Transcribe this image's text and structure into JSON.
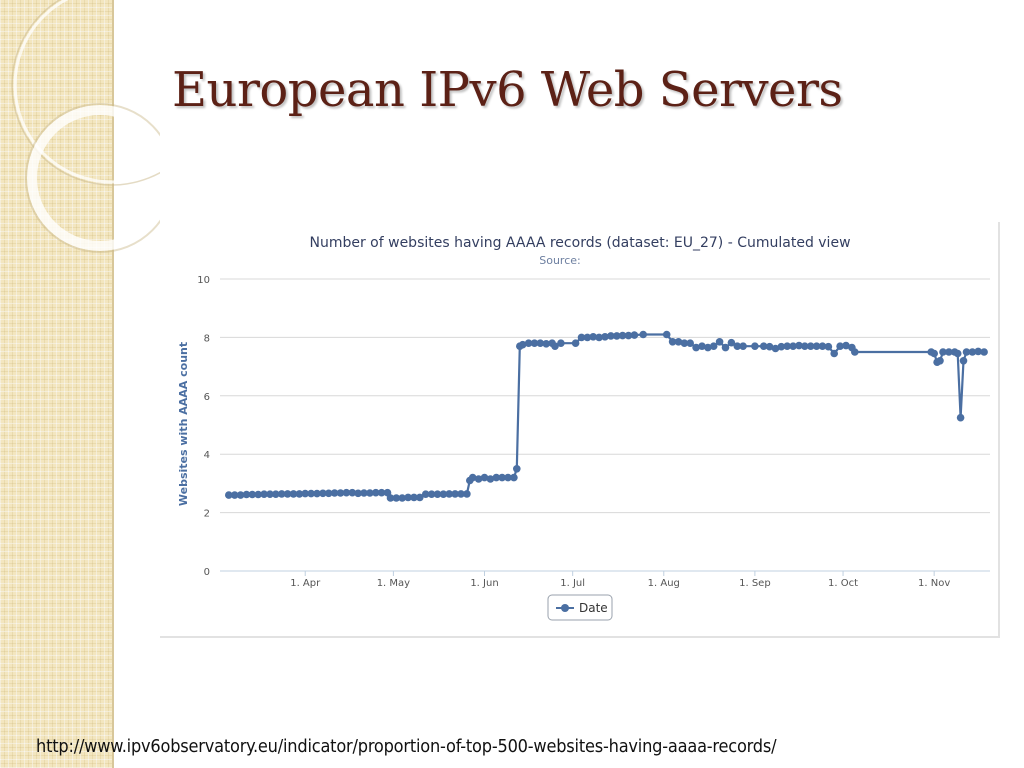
{
  "slide": {
    "title": "European IPv6 Web Servers",
    "source_url": "http://www.ipv6observatory.eu/indicator/proportion-of-top-500-websites-having-aaaa-records/"
  },
  "colors": {
    "title": "#5c2116",
    "series": "#4b6fa2",
    "sidebar": "#f3e6bf"
  },
  "chart_data": {
    "type": "line",
    "title": "Number of websites having AAAA records (dataset: EU_27) - Cumulated view",
    "subtitle": "Source:",
    "xlabel": "",
    "ylabel": "Websites with AAAA count",
    "ylim": [
      0,
      10
    ],
    "yticks": [
      "0",
      "2",
      "4",
      "6",
      "8",
      "10"
    ],
    "xlim": [
      "2011-03-03",
      "2011-11-20"
    ],
    "xticks": [
      {
        "date": "2011-04-01",
        "label": "1. Apr"
      },
      {
        "date": "2011-05-01",
        "label": "1. May"
      },
      {
        "date": "2011-06-01",
        "label": "1. Jun"
      },
      {
        "date": "2011-07-01",
        "label": "1. Jul"
      },
      {
        "date": "2011-08-01",
        "label": "1. Aug"
      },
      {
        "date": "2011-09-01",
        "label": "1. Sep"
      },
      {
        "date": "2011-10-01",
        "label": "1. Oct"
      },
      {
        "date": "2011-11-01",
        "label": "1. Nov"
      }
    ],
    "grid": true,
    "legend": "bottom-center",
    "series": [
      {
        "name": "Date",
        "color": "#4b6fa2",
        "points": [
          [
            "2011-03-06",
            2.6
          ],
          [
            "2011-03-08",
            2.6
          ],
          [
            "2011-03-10",
            2.6
          ],
          [
            "2011-03-12",
            2.62
          ],
          [
            "2011-03-14",
            2.62
          ],
          [
            "2011-03-16",
            2.62
          ],
          [
            "2011-03-18",
            2.63
          ],
          [
            "2011-03-20",
            2.63
          ],
          [
            "2011-03-22",
            2.63
          ],
          [
            "2011-03-24",
            2.64
          ],
          [
            "2011-03-26",
            2.64
          ],
          [
            "2011-03-28",
            2.64
          ],
          [
            "2011-03-30",
            2.64
          ],
          [
            "2011-04-01",
            2.65
          ],
          [
            "2011-04-03",
            2.65
          ],
          [
            "2011-04-05",
            2.65
          ],
          [
            "2011-04-07",
            2.66
          ],
          [
            "2011-04-09",
            2.66
          ],
          [
            "2011-04-11",
            2.67
          ],
          [
            "2011-04-13",
            2.67
          ],
          [
            "2011-04-15",
            2.68
          ],
          [
            "2011-04-17",
            2.68
          ],
          [
            "2011-04-19",
            2.66
          ],
          [
            "2011-04-21",
            2.67
          ],
          [
            "2011-04-23",
            2.67
          ],
          [
            "2011-04-25",
            2.68
          ],
          [
            "2011-04-27",
            2.68
          ],
          [
            "2011-04-29",
            2.68
          ],
          [
            "2011-04-30",
            2.5
          ],
          [
            "2011-05-02",
            2.5
          ],
          [
            "2011-05-04",
            2.5
          ],
          [
            "2011-05-06",
            2.52
          ],
          [
            "2011-05-08",
            2.52
          ],
          [
            "2011-05-10",
            2.52
          ],
          [
            "2011-05-12",
            2.63
          ],
          [
            "2011-05-14",
            2.63
          ],
          [
            "2011-05-16",
            2.63
          ],
          [
            "2011-05-18",
            2.63
          ],
          [
            "2011-05-20",
            2.64
          ],
          [
            "2011-05-22",
            2.64
          ],
          [
            "2011-05-24",
            2.64
          ],
          [
            "2011-05-26",
            2.64
          ],
          [
            "2011-05-27",
            3.1
          ],
          [
            "2011-05-28",
            3.2
          ],
          [
            "2011-05-30",
            3.15
          ],
          [
            "2011-06-01",
            3.2
          ],
          [
            "2011-06-03",
            3.15
          ],
          [
            "2011-06-05",
            3.2
          ],
          [
            "2011-06-07",
            3.2
          ],
          [
            "2011-06-09",
            3.2
          ],
          [
            "2011-06-11",
            3.2
          ],
          [
            "2011-06-12",
            3.5
          ],
          [
            "2011-06-13",
            7.7
          ],
          [
            "2011-06-14",
            7.75
          ],
          [
            "2011-06-16",
            7.8
          ],
          [
            "2011-06-18",
            7.8
          ],
          [
            "2011-06-20",
            7.8
          ],
          [
            "2011-06-22",
            7.78
          ],
          [
            "2011-06-24",
            7.8
          ],
          [
            "2011-06-25",
            7.7
          ],
          [
            "2011-06-27",
            7.8
          ],
          [
            "2011-07-02",
            7.8
          ],
          [
            "2011-07-04",
            8.0
          ],
          [
            "2011-07-06",
            8.0
          ],
          [
            "2011-07-08",
            8.02
          ],
          [
            "2011-07-10",
            8.0
          ],
          [
            "2011-07-12",
            8.02
          ],
          [
            "2011-07-14",
            8.05
          ],
          [
            "2011-07-16",
            8.05
          ],
          [
            "2011-07-18",
            8.06
          ],
          [
            "2011-07-20",
            8.06
          ],
          [
            "2011-07-22",
            8.08
          ],
          [
            "2011-07-25",
            8.1
          ],
          [
            "2011-08-02",
            8.1
          ],
          [
            "2011-08-04",
            7.85
          ],
          [
            "2011-08-06",
            7.85
          ],
          [
            "2011-08-08",
            7.8
          ],
          [
            "2011-08-10",
            7.8
          ],
          [
            "2011-08-12",
            7.65
          ],
          [
            "2011-08-14",
            7.7
          ],
          [
            "2011-08-16",
            7.65
          ],
          [
            "2011-08-18",
            7.7
          ],
          [
            "2011-08-20",
            7.85
          ],
          [
            "2011-08-22",
            7.65
          ],
          [
            "2011-08-24",
            7.82
          ],
          [
            "2011-08-26",
            7.7
          ],
          [
            "2011-08-28",
            7.7
          ],
          [
            "2011-09-01",
            7.7
          ],
          [
            "2011-09-04",
            7.7
          ],
          [
            "2011-09-06",
            7.68
          ],
          [
            "2011-09-08",
            7.62
          ],
          [
            "2011-09-10",
            7.68
          ],
          [
            "2011-09-12",
            7.7
          ],
          [
            "2011-09-14",
            7.7
          ],
          [
            "2011-09-16",
            7.72
          ],
          [
            "2011-09-18",
            7.7
          ],
          [
            "2011-09-20",
            7.7
          ],
          [
            "2011-09-22",
            7.7
          ],
          [
            "2011-09-24",
            7.7
          ],
          [
            "2011-09-26",
            7.68
          ],
          [
            "2011-09-28",
            7.45
          ],
          [
            "2011-09-30",
            7.7
          ],
          [
            "2011-10-02",
            7.72
          ],
          [
            "2011-10-04",
            7.65
          ],
          [
            "2011-10-05",
            7.5
          ],
          [
            "2011-10-31",
            7.5
          ],
          [
            "2011-11-01",
            7.45
          ],
          [
            "2011-11-02",
            7.15
          ],
          [
            "2011-11-03",
            7.2
          ],
          [
            "2011-11-04",
            7.5
          ],
          [
            "2011-11-06",
            7.5
          ],
          [
            "2011-11-08",
            7.5
          ],
          [
            "2011-11-09",
            7.45
          ],
          [
            "2011-11-10",
            5.25
          ],
          [
            "2011-11-11",
            7.2
          ],
          [
            "2011-11-12",
            7.5
          ],
          [
            "2011-11-14",
            7.5
          ],
          [
            "2011-11-16",
            7.52
          ],
          [
            "2011-11-18",
            7.5
          ]
        ]
      }
    ]
  }
}
